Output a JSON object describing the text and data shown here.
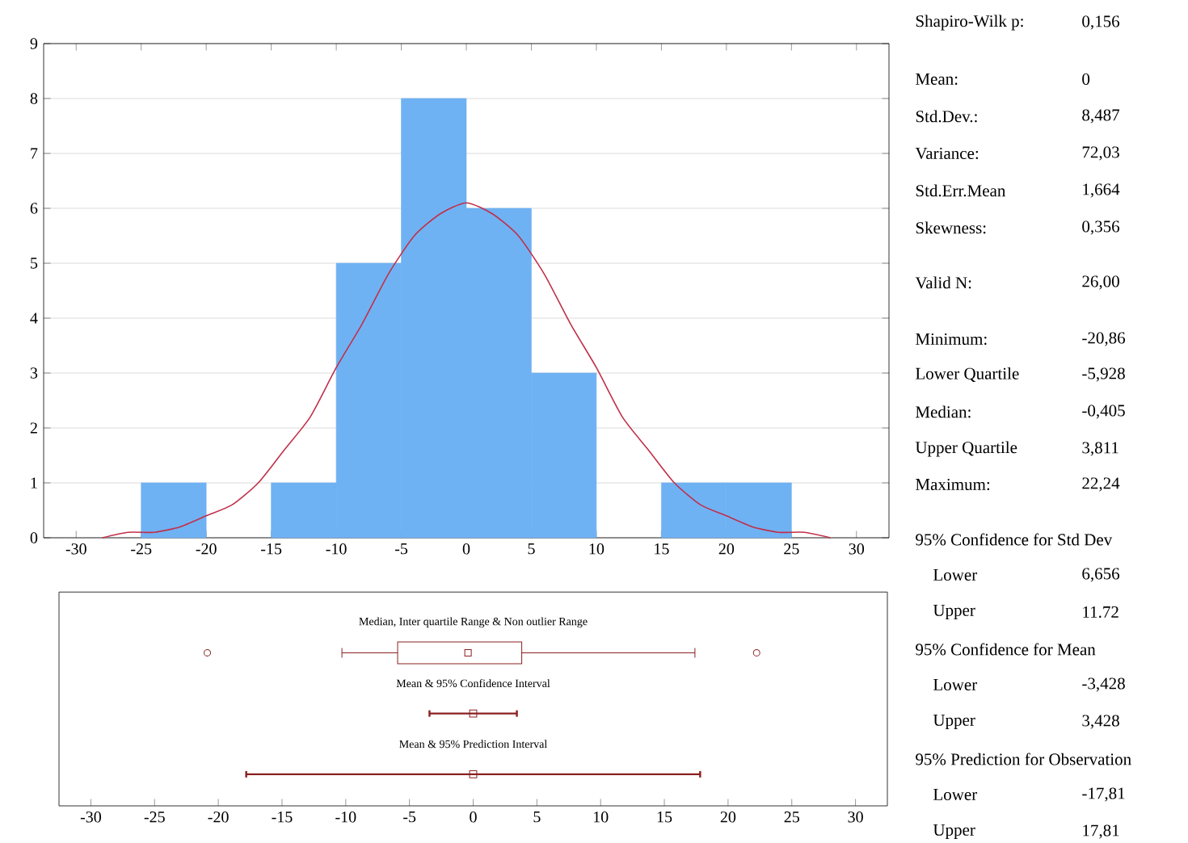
{
  "chart_data": [
    {
      "type": "histogram",
      "xlim": [
        -32.5,
        32.5
      ],
      "ylim": [
        0,
        9
      ],
      "xticks": [
        -30,
        -25,
        -20,
        -15,
        -10,
        -5,
        0,
        5,
        10,
        15,
        20,
        25,
        30
      ],
      "yticks": [
        0,
        1,
        2,
        3,
        4,
        5,
        6,
        7,
        8,
        9
      ],
      "grid": "y",
      "series": [
        {
          "type": "histogram",
          "color": "#6fb2f3",
          "bins": [
            -25,
            -20,
            -15,
            -10,
            -5,
            0,
            5,
            10,
            15,
            20,
            25
          ],
          "values": [
            1,
            0,
            1,
            5,
            8,
            6,
            3,
            0,
            1,
            1
          ]
        },
        {
          "type": "line",
          "color": "#c0304a",
          "x": [
            -28,
            -26,
            -24,
            -22,
            -20,
            -18,
            -16,
            -14,
            -12,
            -10,
            -8,
            -6,
            -4,
            -2,
            0,
            2,
            4,
            6,
            8,
            10,
            12,
            14,
            16,
            18,
            20,
            22,
            24,
            26,
            28
          ],
          "values": [
            0.0,
            0.1,
            0.1,
            0.2,
            0.4,
            0.6,
            1.0,
            1.6,
            2.2,
            3.1,
            3.9,
            4.8,
            5.5,
            5.9,
            6.1,
            5.9,
            5.5,
            4.8,
            3.9,
            3.1,
            2.2,
            1.6,
            1.0,
            0.6,
            0.4,
            0.2,
            0.1,
            0.1,
            0.0
          ]
        }
      ]
    },
    {
      "type": "box",
      "orientation": "horizontal",
      "xlim": [
        -32.5,
        32.5
      ],
      "xticks": [
        -30,
        -25,
        -20,
        -15,
        -10,
        -5,
        0,
        5,
        10,
        15,
        20,
        25,
        30
      ],
      "categories": [
        "Median, Inter quartile Range & Non outlier Range",
        "Mean & 95% Confidence Interval",
        "Mean & 95% Prediction Interval"
      ],
      "series": [
        {
          "type": "box",
          "color": "#8b2020",
          "boxes": [
            {
              "low": -10.3,
              "q1": -5.928,
              "median": -0.405,
              "q3": 3.811,
              "high": 17.4,
              "outliers": [
                -20.86,
                22.24
              ]
            },
            null,
            null
          ]
        },
        {
          "type": "scatter",
          "color": "#8b2020",
          "marker": "square",
          "values": [
            null,
            0,
            0
          ],
          "errors": [
            null,
            3.428,
            17.81
          ]
        }
      ]
    },
    {
      "type": "other",
      "annotations": [
        "Shapiro-Wilk p:",
        "0,156",
        "Mean:",
        "0",
        "Std.Dev.:",
        "8,487",
        "Variance:",
        "72,03",
        "Std.Err.Mean",
        "1,664",
        "Skewness:",
        "0,356",
        "Valid N:",
        "26,00",
        "Minimum:",
        "-20,86",
        "Lower Quartile",
        "-5,928",
        "Median:",
        "-0,405",
        "Upper Quartile",
        "3,811",
        "Maximum:",
        "22,24",
        "95% Confidence for Std Dev",
        "Lower",
        "6,656",
        "Upper",
        "11.72",
        "95% Confidence for Mean",
        "Lower",
        "-3,428",
        "Upper",
        "3,428",
        "95% Prediction for Observation",
        "Lower",
        "-17,81",
        "Upper",
        "17,81"
      ]
    }
  ]
}
